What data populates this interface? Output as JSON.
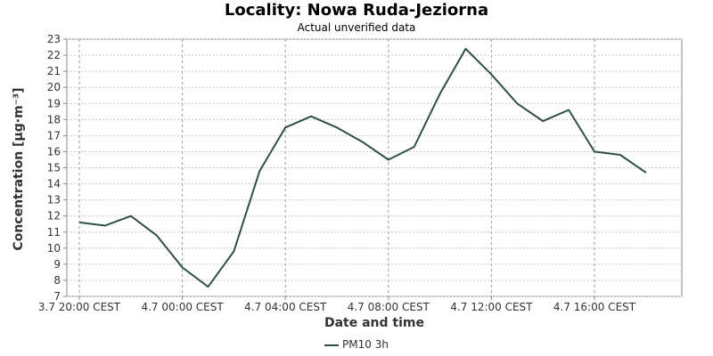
{
  "chart_data": {
    "type": "line",
    "title": "Locality: Nowa Ruda-Jeziorna",
    "subtitle": "Actual unverified data",
    "xlabel": "Date and time",
    "ylabel": "Concentration [µg·m⁻³]",
    "ylim": [
      7,
      23
    ],
    "y_ticks": [
      7,
      8,
      9,
      10,
      11,
      12,
      13,
      14,
      15,
      16,
      17,
      18,
      19,
      20,
      21,
      22,
      23
    ],
    "x_ticks": [
      {
        "label": "3.7 20:00 CEST",
        "index": 0
      },
      {
        "label": "4.7 00:00 CEST",
        "index": 4
      },
      {
        "label": "4.7 04:00 CEST",
        "index": 8
      },
      {
        "label": "4.7 08:00 CEST",
        "index": 12
      },
      {
        "label": "4.7 12:00 CEST",
        "index": 16
      },
      {
        "label": "4.7 16:00 CEST",
        "index": 20
      }
    ],
    "x": [
      "3.7 20:00",
      "3.7 21:00",
      "3.7 22:00",
      "3.7 23:00",
      "4.7 00:00",
      "4.7 01:00",
      "4.7 02:00",
      "4.7 03:00",
      "4.7 04:00",
      "4.7 05:00",
      "4.7 06:00",
      "4.7 07:00",
      "4.7 08:00",
      "4.7 09:00",
      "4.7 10:00",
      "4.7 11:00",
      "4.7 12:00",
      "4.7 13:00",
      "4.7 14:00",
      "4.7 15:00",
      "4.7 16:00",
      "4.7 17:00",
      "4.7 18:00"
    ],
    "x_tick_labels": [
      "3.7 20:00 CEST",
      "4.7 00:00 CEST",
      "4.7 04:00 CEST",
      "4.7 08:00 CEST",
      "4.7 12:00 CEST",
      "4.7 16:00 CEST"
    ],
    "series": [
      {
        "name": "PM10 3h",
        "color": "#2f4f4a",
        "values": [
          11.6,
          11.4,
          12.0,
          10.8,
          8.8,
          7.6,
          9.8,
          14.8,
          17.5,
          18.2,
          17.5,
          16.6,
          15.5,
          16.3,
          19.6,
          22.4,
          20.8,
          19.0,
          17.9,
          18.6,
          16.0,
          15.8,
          14.7
        ]
      }
    ],
    "grid": true,
    "legend": "bottom-center"
  }
}
